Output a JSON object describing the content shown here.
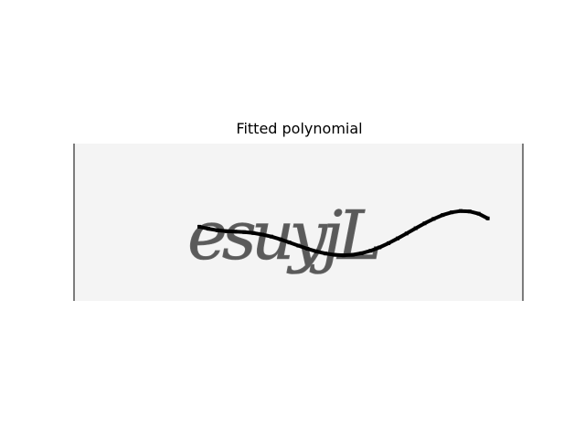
{
  "chart_data": {
    "type": "line",
    "title": "Fitted polynomial",
    "xlabel": "",
    "ylabel": "",
    "grid": false,
    "axes_visible": false,
    "background_image": {
      "description_text": "esuyjL"
    },
    "xlim": [
      0,
      200
    ],
    "ylim": [
      70,
      0
    ],
    "series": [
      {
        "name": "fitted polynomial",
        "x": [
          56,
          60,
          64,
          68,
          72,
          76,
          80,
          84,
          88,
          92,
          96,
          100,
          104,
          108,
          112,
          116,
          120,
          124,
          128,
          132,
          136,
          140,
          144,
          148,
          152,
          156,
          160,
          164,
          168,
          172,
          176,
          180,
          184
        ],
        "y": [
          37.0,
          37.9,
          38.6,
          39.0,
          39.2,
          39.4,
          39.8,
          40.5,
          41.4,
          42.6,
          44.0,
          45.4,
          46.8,
          48.0,
          48.9,
          49.5,
          49.7,
          49.5,
          48.8,
          47.7,
          46.2,
          44.3,
          42.2,
          40.0,
          37.7,
          35.5,
          33.5,
          31.8,
          30.6,
          30.0,
          30.2,
          31.2,
          33.3
        ]
      }
    ]
  }
}
